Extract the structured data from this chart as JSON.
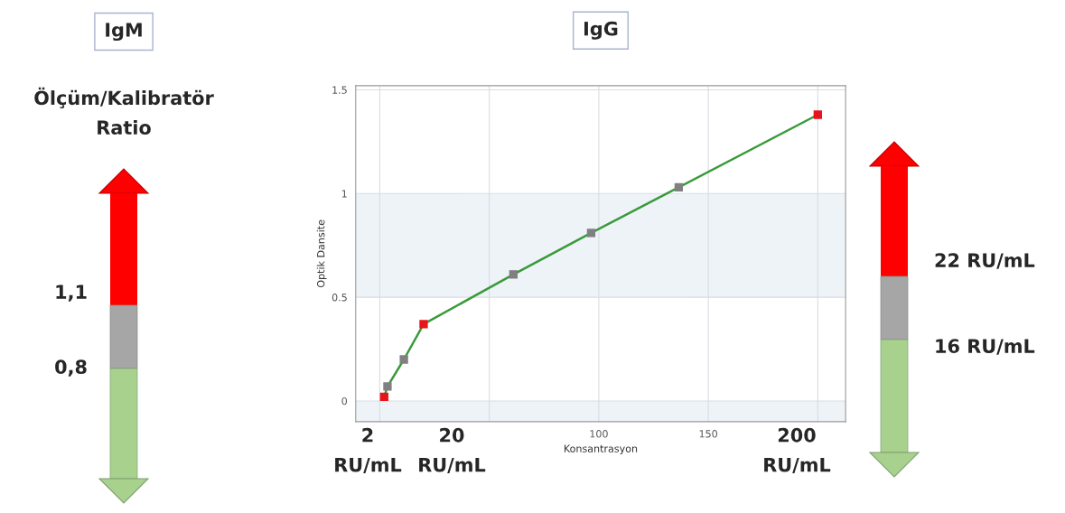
{
  "chart_data": {
    "type": "line",
    "title": "IgG",
    "xlabel": "Konsantrasyon",
    "ylabel": "Optik Dansite",
    "x": [
      2,
      3.5,
      11,
      20,
      61,
      96.5,
      136.5,
      200
    ],
    "series": [
      {
        "color": "#3a9a3a",
        "values": [
          0.02,
          0.07,
          0.2,
          0.37,
          0.61,
          0.81,
          1.03,
          1.38
        ],
        "colors": [
          "#e8141c",
          "#808080",
          "#808080",
          "#e8141c",
          "#808080",
          "#808080",
          "#808080",
          "#e8141c"
        ]
      }
    ],
    "marker": "square",
    "line_style": "solid",
    "grid": true,
    "xlim": [
      -11,
      212.7
    ],
    "ylim": [
      -0.1,
      1.52
    ],
    "xticks": [
      {
        "value": 0,
        "label": null
      },
      {
        "value": 50,
        "label": null
      },
      100,
      150,
      {
        "value": 200,
        "label": null
      }
    ],
    "yticks": [
      0,
      0.5,
      1,
      1.5
    ],
    "bands": [
      {
        "axis": "y",
        "from": -0.1,
        "to": 0,
        "color": "#eef3f8"
      },
      {
        "axis": "y",
        "from": 0.5,
        "to": 1,
        "color": "#eef3f8"
      }
    ],
    "annotations": [
      "IgM",
      "Ölçüm/Kalibratör\nRatio",
      "1,1",
      "0,8",
      "22 RU/mL",
      "16 RU/mL",
      "2\nRU/mL",
      "20\nRU/mL",
      "200\nRU/mL"
    ]
  }
}
